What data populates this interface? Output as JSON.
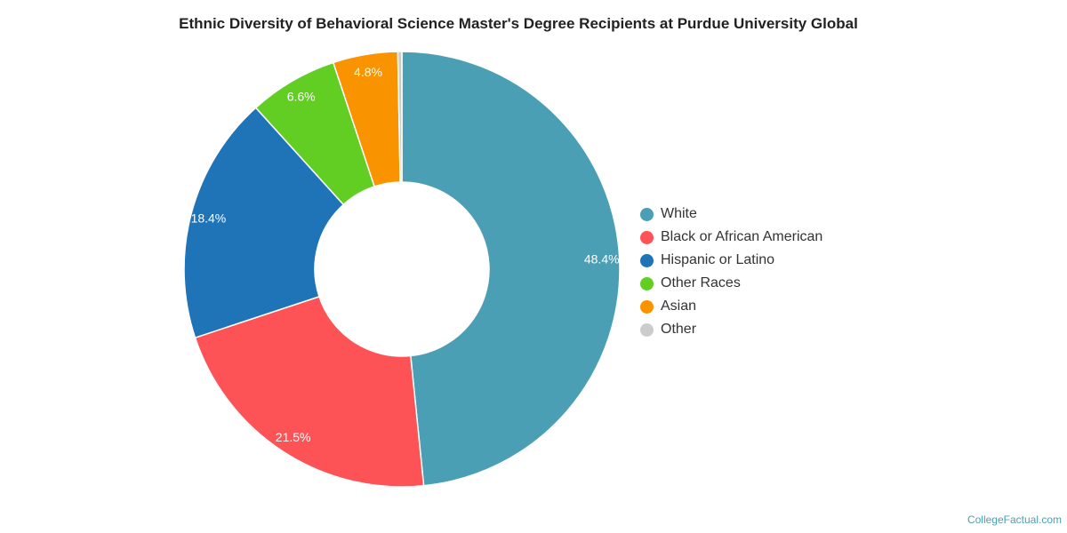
{
  "chart_data": {
    "type": "pie",
    "title": "Ethnic Diversity of Behavioral Science Master's Degree Recipients at Purdue University Global",
    "donut": true,
    "legend_placement": "right",
    "slices": [
      {
        "name": "White",
        "value": 48.4,
        "label": "48.4%",
        "color": "#4a9fb5"
      },
      {
        "name": "Black or African American",
        "value": 21.5,
        "label": "21.5%",
        "color": "#fd5357"
      },
      {
        "name": "Hispanic or Latino",
        "value": 18.4,
        "label": "18.4%",
        "color": "#1f73b7"
      },
      {
        "name": "Other Races",
        "value": 6.6,
        "label": "6.6%",
        "color": "#62ce23"
      },
      {
        "name": "Asian",
        "value": 4.8,
        "label": "4.8%",
        "color": "#f99300"
      },
      {
        "name": "Other",
        "value": 0.3,
        "label": "",
        "color": "#cccccc"
      }
    ]
  },
  "footer": {
    "credit": "CollegeFactual.com"
  }
}
